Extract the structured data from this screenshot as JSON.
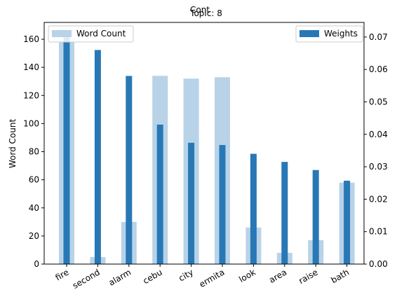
{
  "chart_data": {
    "type": "bar",
    "suptitle": "Cont",
    "title": "Topic: 8",
    "categories": [
      "fire",
      "second",
      "alarm",
      "cebu",
      "city",
      "ermita",
      "look",
      "area",
      "raise",
      "bath"
    ],
    "series": [
      {
        "name": "Word Count",
        "axis": "left",
        "values": [
          158,
          5,
          30,
          134,
          132,
          133,
          26,
          8,
          17,
          58
        ]
      },
      {
        "name": "Weights",
        "axis": "right",
        "values": [
          0.07,
          0.066,
          0.058,
          0.043,
          0.0374,
          0.0367,
          0.034,
          0.0315,
          0.029,
          0.0257
        ]
      }
    ],
    "ylabel_left": "Word Count",
    "ylim_left": [
      0,
      172
    ],
    "yticks_left": [
      "0",
      "20",
      "40",
      "60",
      "80",
      "100",
      "120",
      "140",
      "160"
    ],
    "ylim_right": [
      0,
      0.0745
    ],
    "yticks_right": [
      "0.00",
      "0.01",
      "0.02",
      "0.03",
      "0.04",
      "0.05",
      "0.06",
      "0.07"
    ],
    "legend_left": "top-left",
    "legend_right": "top-right",
    "grid": false,
    "colors": {
      "word_count": "#b8d3e8",
      "weights": "#2878b5",
      "ylabel_left": "#2878b5",
      "title": "#2878b5"
    }
  }
}
